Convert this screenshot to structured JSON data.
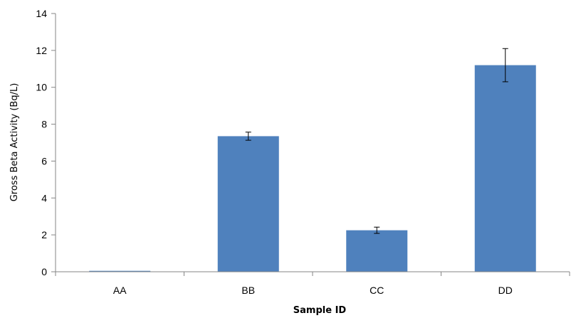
{
  "chart_data": {
    "type": "bar",
    "categories": [
      "AA",
      "BB",
      "CC",
      "DD"
    ],
    "values": [
      0.05,
      7.35,
      2.25,
      11.2
    ],
    "errors": [
      0,
      0.22,
      0.17,
      0.9
    ],
    "xlabel": "Sample ID",
    "ylabel": "Gross Beta Activity (Bq/L)",
    "ylim": [
      0,
      14
    ],
    "yticks": [
      0,
      2,
      4,
      6,
      8,
      10,
      12,
      14
    ],
    "grid": false,
    "legend": "none",
    "bar_color": "#4F81BD",
    "axis_color": "#868686",
    "error_bar_color": "#000000"
  }
}
